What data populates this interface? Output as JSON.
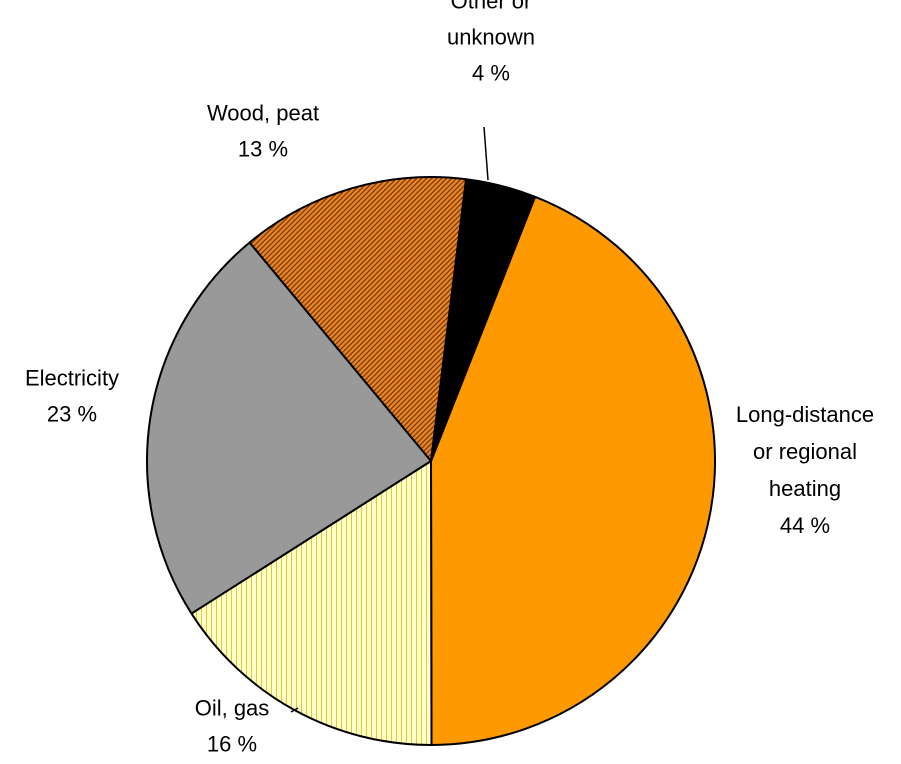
{
  "chart_data": {
    "type": "pie",
    "title": "",
    "unit": "%",
    "slices": [
      {
        "label_lines": [
          "Long-distance",
          "or regional",
          "heating"
        ],
        "value_text": "44 %",
        "value": 44,
        "color": "#ff9900",
        "pattern": "solid"
      },
      {
        "label_lines": [
          "Oil, gas"
        ],
        "value_text": "16 %",
        "value": 16,
        "color": "#ffffcc",
        "pattern": "vertical-lines"
      },
      {
        "label_lines": [
          "Electricity"
        ],
        "value_text": "23 %",
        "value": 23,
        "color": "#999999",
        "pattern": "solid"
      },
      {
        "label_lines": [
          "Wood, peat"
        ],
        "value_text": "13 %",
        "value": 13,
        "color": "#cc6600",
        "pattern": "diagonal-hatch"
      },
      {
        "label_lines": [
          "Other or",
          "unknown"
        ],
        "value_text": "4 %",
        "value": 4,
        "color": "#000000",
        "pattern": "solid"
      }
    ],
    "start_angle_deg": 21.5,
    "direction": "clockwise",
    "legend": "none",
    "data_labels": "outside"
  }
}
